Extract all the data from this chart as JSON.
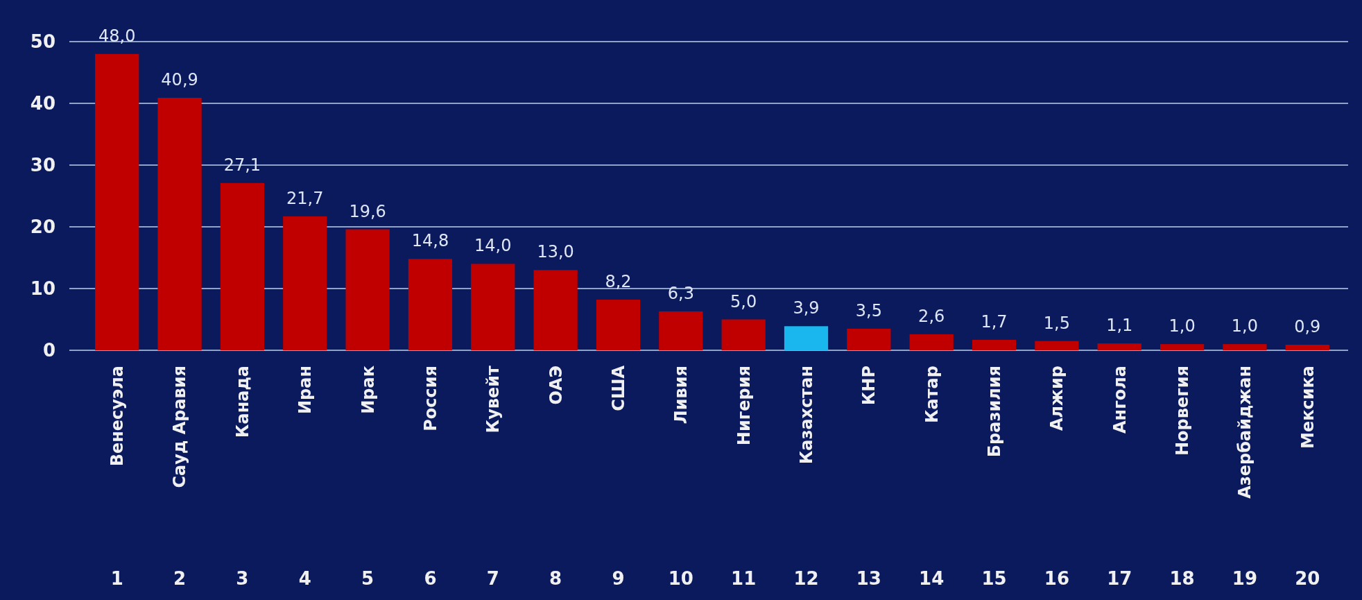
{
  "chart_data": {
    "type": "bar",
    "categories": [
      "Венесуэла",
      "Сауд Аравия",
      "Канада",
      "Иран",
      "Ирак",
      "Россия",
      "Кувейт",
      "ОАЭ",
      "США",
      "Ливия",
      "Нигерия",
      "Казахстан",
      "КНР",
      "Катар",
      "Бразилия",
      "Алжир",
      "Ангола",
      "Норвегия",
      "Азербайджан",
      "Мексика"
    ],
    "values": [
      48.0,
      40.9,
      27.1,
      21.7,
      19.6,
      14.8,
      14.0,
      13.0,
      8.2,
      6.3,
      5.0,
      3.9,
      3.5,
      2.6,
      1.7,
      1.5,
      1.1,
      1.0,
      1.0,
      0.9
    ],
    "colors": [
      "#c00000",
      "#c00000",
      "#c00000",
      "#c00000",
      "#c00000",
      "#c00000",
      "#c00000",
      "#c00000",
      "#c00000",
      "#c00000",
      "#c00000",
      "#1ab6ee",
      "#c00000",
      "#c00000",
      "#c00000",
      "#c00000",
      "#c00000",
      "#c00000",
      "#c00000",
      "#c00000"
    ],
    "value_labels": [
      "48,0",
      "40,9",
      "27,1",
      "21,7",
      "19,6",
      "14,8",
      "14,0",
      "13,0",
      "8,2",
      "6,3",
      "5,0",
      "3,9",
      "3,5",
      "2,6",
      "1,7",
      "1,5",
      "1,1",
      "1,0",
      "1,0",
      "0,9"
    ],
    "annotations": [
      "1",
      "2",
      "3",
      "4",
      "5",
      "6",
      "7",
      "8",
      "9",
      "10",
      "11",
      "12",
      "13",
      "14",
      "15",
      "16",
      "17",
      "18",
      "19",
      "20"
    ],
    "ylim": [
      0,
      50
    ],
    "yticks": [
      0,
      10,
      20,
      30,
      40,
      50
    ],
    "grid": "y"
  }
}
